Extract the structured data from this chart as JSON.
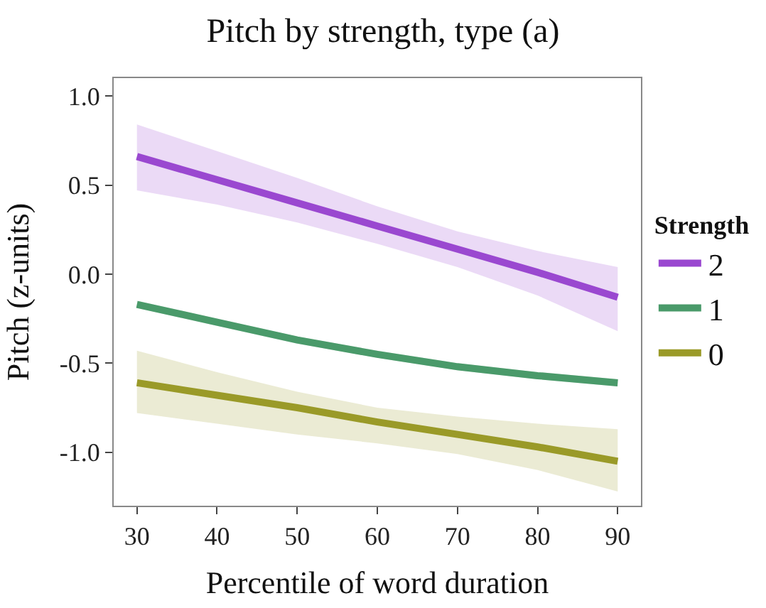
{
  "chart_data": {
    "type": "line",
    "title": "Pitch by strength, type (a)",
    "xlabel": "Percentile of word duration",
    "ylabel": "Pitch (z-units)",
    "legend_title": "Strength",
    "x": [
      30,
      40,
      50,
      60,
      70,
      80,
      90
    ],
    "series": [
      {
        "name": "2",
        "color": "#9a48d0",
        "values": [
          0.66,
          0.53,
          0.4,
          0.27,
          0.14,
          0.01,
          -0.13
        ],
        "lower": [
          0.47,
          0.39,
          0.29,
          0.17,
          0.04,
          -0.12,
          -0.32
        ],
        "upper": [
          0.84,
          0.69,
          0.54,
          0.38,
          0.24,
          0.13,
          0.04
        ]
      },
      {
        "name": "1",
        "color": "#4a9a6a",
        "values": [
          -0.17,
          -0.27,
          -0.37,
          -0.45,
          -0.52,
          -0.57,
          -0.61
        ],
        "lower": [
          -0.19,
          -0.29,
          -0.39,
          -0.47,
          -0.54,
          -0.59,
          -0.63
        ],
        "upper": [
          -0.15,
          -0.25,
          -0.35,
          -0.43,
          -0.5,
          -0.55,
          -0.59
        ]
      },
      {
        "name": "0",
        "color": "#9a9a28",
        "values": [
          -0.61,
          -0.68,
          -0.75,
          -0.83,
          -0.9,
          -0.97,
          -1.05
        ],
        "lower": [
          -0.78,
          -0.84,
          -0.9,
          -0.95,
          -1.01,
          -1.1,
          -1.22
        ],
        "upper": [
          -0.43,
          -0.55,
          -0.66,
          -0.75,
          -0.8,
          -0.84,
          -0.87
        ]
      }
    ],
    "xlim": [
      27.1,
      92.9
    ],
    "xticks": [
      30,
      40,
      50,
      60,
      70,
      80,
      90
    ],
    "ylim": [
      -1.3,
      1.1
    ],
    "yticks": [
      {
        "value": 1.0,
        "label": "1.0"
      },
      {
        "value": 0.5,
        "label": "0.5"
      },
      {
        "value": 0.0,
        "label": "0.0"
      },
      {
        "value": -0.5,
        "label": "-0.5"
      },
      {
        "value": -1.0,
        "label": "-1.0"
      }
    ],
    "legend": "right",
    "marker": "none",
    "line_style": "solid"
  }
}
